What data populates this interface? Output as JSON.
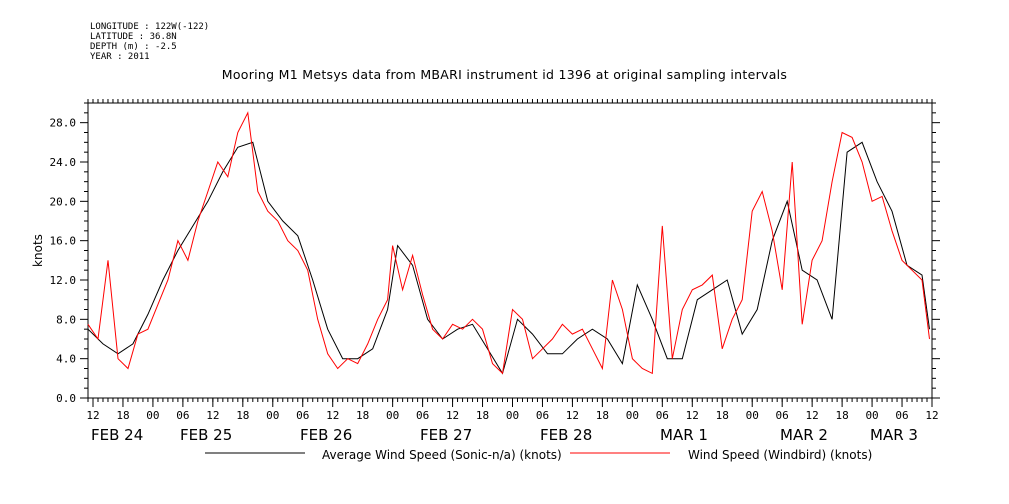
{
  "header": {
    "meta_lines": [
      "LONGITUDE : 122W(-122)",
      "LATITUDE : 36.8N",
      "DEPTH (m) : -2.5",
      "YEAR : 2011"
    ],
    "title": "Mooring M1 Metsys data from MBARI instrument id 1396 at original sampling intervals"
  },
  "chart_data": {
    "type": "line",
    "title": "Mooring M1 Metsys data from MBARI instrument id 1396 at original sampling intervals",
    "xlabel": "",
    "ylabel": "knots",
    "xlim": [
      "2011-02-24T11:00",
      "2011-03-03T12:00"
    ],
    "ylim": [
      0,
      30
    ],
    "y_ticks": [
      "0.0",
      "4.0",
      "8.0",
      "12.0",
      "16.0",
      "20.0",
      "24.0",
      "28.0"
    ],
    "x_tick_labels": [
      "12",
      "18",
      "00",
      "06",
      "12",
      "18",
      "00",
      "06",
      "12",
      "18",
      "00",
      "06",
      "12",
      "18",
      "00",
      "06",
      "12",
      "18",
      "00",
      "06",
      "12",
      "18",
      "00",
      "06",
      "12",
      "18",
      "00",
      "06",
      "12"
    ],
    "x_date_labels": [
      "FEB 24",
      "FEB 25",
      "FEB 26",
      "FEB 27",
      "FEB 28",
      "MAR  1",
      "MAR  2",
      "MAR  3"
    ],
    "grid": false,
    "legend_position": "bottom",
    "series": [
      {
        "name": "Average Wind Speed (Sonic-n/a) (knots)",
        "color": "#000000",
        "x": [
          "2011-02-24T11:00",
          "2011-02-24T14:00",
          "2011-02-24T17:00",
          "2011-02-24T20:00",
          "2011-02-24T23:00",
          "2011-02-25T02:00",
          "2011-02-25T05:00",
          "2011-02-25T08:00",
          "2011-02-25T11:00",
          "2011-02-25T14:00",
          "2011-02-25T17:00",
          "2011-02-25T20:00",
          "2011-02-25T23:00",
          "2011-02-26T02:00",
          "2011-02-26T05:00",
          "2011-02-26T08:00",
          "2011-02-26T11:00",
          "2011-02-26T14:00",
          "2011-02-26T17:00",
          "2011-02-26T20:00",
          "2011-02-26T23:00",
          "2011-02-27T01:00",
          "2011-02-27T04:00",
          "2011-02-27T07:00",
          "2011-02-27T10:00",
          "2011-02-27T13:00",
          "2011-02-27T16:00",
          "2011-02-27T19:00",
          "2011-02-27T22:00",
          "2011-02-28T01:00",
          "2011-02-28T04:00",
          "2011-02-28T07:00",
          "2011-02-28T10:00",
          "2011-02-28T13:00",
          "2011-02-28T16:00",
          "2011-02-28T19:00",
          "2011-02-28T22:00",
          "2011-03-01T01:00",
          "2011-03-01T04:00",
          "2011-03-01T07:00",
          "2011-03-01T10:00",
          "2011-03-01T13:00",
          "2011-03-01T16:00",
          "2011-03-01T19:00",
          "2011-03-01T22:00",
          "2011-03-02T01:00",
          "2011-03-02T04:00",
          "2011-03-02T07:00",
          "2011-03-02T10:00",
          "2011-03-02T13:00",
          "2011-03-02T16:00",
          "2011-03-02T19:00",
          "2011-03-02T22:00",
          "2011-03-03T01:00",
          "2011-03-03T04:00",
          "2011-03-03T07:00",
          "2011-03-03T10:00",
          "2011-03-03T11:30"
        ],
        "y": [
          7.0,
          5.5,
          4.5,
          5.5,
          8.5,
          12.0,
          15.0,
          17.5,
          20.0,
          23.0,
          25.5,
          26.0,
          20.0,
          18.0,
          16.5,
          12.0,
          7.0,
          4.0,
          4.0,
          5.0,
          9.0,
          15.5,
          13.5,
          8.0,
          6.0,
          7.0,
          7.5,
          5.0,
          2.5,
          8.0,
          6.5,
          4.5,
          4.5,
          6.0,
          7.0,
          6.0,
          3.5,
          11.5,
          8.0,
          4.0,
          4.0,
          10.0,
          11.0,
          12.0,
          6.5,
          9.0,
          16.0,
          20.0,
          13.0,
          12.0,
          8.0,
          25.0,
          26.0,
          22.0,
          19.0,
          13.5,
          12.5,
          7.0
        ]
      },
      {
        "name": "Wind Speed (Windbird) (knots)",
        "color": "#ff0000",
        "x": [
          "2011-02-24T11:00",
          "2011-02-24T13:00",
          "2011-02-24T15:00",
          "2011-02-24T17:00",
          "2011-02-24T19:00",
          "2011-02-24T21:00",
          "2011-02-24T23:00",
          "2011-02-25T01:00",
          "2011-02-25T03:00",
          "2011-02-25T05:00",
          "2011-02-25T07:00",
          "2011-02-25T09:00",
          "2011-02-25T11:00",
          "2011-02-25T13:00",
          "2011-02-25T15:00",
          "2011-02-25T17:00",
          "2011-02-25T19:00",
          "2011-02-25T21:00",
          "2011-02-25T23:00",
          "2011-02-26T01:00",
          "2011-02-26T03:00",
          "2011-02-26T05:00",
          "2011-02-26T07:00",
          "2011-02-26T09:00",
          "2011-02-26T11:00",
          "2011-02-26T13:00",
          "2011-02-26T15:00",
          "2011-02-26T17:00",
          "2011-02-26T19:00",
          "2011-02-26T21:00",
          "2011-02-26T23:00",
          "2011-02-27T00:00",
          "2011-02-27T02:00",
          "2011-02-27T04:00",
          "2011-02-27T06:00",
          "2011-02-27T08:00",
          "2011-02-27T10:00",
          "2011-02-27T12:00",
          "2011-02-27T14:00",
          "2011-02-27T16:00",
          "2011-02-27T18:00",
          "2011-02-27T20:00",
          "2011-02-27T22:00",
          "2011-02-28T00:00",
          "2011-02-28T02:00",
          "2011-02-28T04:00",
          "2011-02-28T06:00",
          "2011-02-28T08:00",
          "2011-02-28T10:00",
          "2011-02-28T12:00",
          "2011-02-28T14:00",
          "2011-02-28T16:00",
          "2011-02-28T18:00",
          "2011-02-28T20:00",
          "2011-02-28T22:00",
          "2011-03-01T00:00",
          "2011-03-01T02:00",
          "2011-03-01T04:00",
          "2011-03-01T06:00",
          "2011-03-01T08:00",
          "2011-03-01T10:00",
          "2011-03-01T12:00",
          "2011-03-01T14:00",
          "2011-03-01T16:00",
          "2011-03-01T18:00",
          "2011-03-01T20:00",
          "2011-03-01T22:00",
          "2011-03-02T00:00",
          "2011-03-02T02:00",
          "2011-03-02T04:00",
          "2011-03-02T06:00",
          "2011-03-02T08:00",
          "2011-03-02T10:00",
          "2011-03-02T12:00",
          "2011-03-02T14:00",
          "2011-03-02T16:00",
          "2011-03-02T18:00",
          "2011-03-02T20:00",
          "2011-03-02T22:00",
          "2011-03-03T00:00",
          "2011-03-03T02:00",
          "2011-03-03T04:00",
          "2011-03-03T06:00",
          "2011-03-03T08:00",
          "2011-03-03T10:00",
          "2011-03-03T11:30"
        ],
        "y": [
          7.5,
          6.0,
          14.0,
          4.0,
          3.0,
          6.5,
          7.0,
          9.5,
          12.0,
          16.0,
          14.0,
          18.0,
          21.0,
          24.0,
          22.5,
          27.0,
          29.0,
          21.0,
          19.0,
          18.0,
          16.0,
          15.0,
          13.0,
          8.0,
          4.5,
          3.0,
          4.0,
          3.5,
          5.5,
          8.0,
          10.0,
          15.5,
          11.0,
          14.5,
          10.5,
          7.0,
          6.0,
          7.5,
          7.0,
          8.0,
          7.0,
          3.5,
          2.5,
          9.0,
          8.0,
          4.0,
          5.0,
          6.0,
          7.5,
          6.5,
          7.0,
          5.0,
          3.0,
          12.0,
          9.0,
          4.0,
          3.0,
          2.5,
          17.5,
          4.0,
          9.0,
          11.0,
          11.5,
          12.5,
          5.0,
          8.0,
          10.0,
          19.0,
          21.0,
          17.0,
          11.0,
          24.0,
          7.5,
          14.0,
          16.0,
          22.0,
          27.0,
          26.5,
          24.0,
          20.0,
          20.5,
          17.0,
          14.0,
          13.0,
          12.0,
          6.0
        ]
      }
    ]
  }
}
